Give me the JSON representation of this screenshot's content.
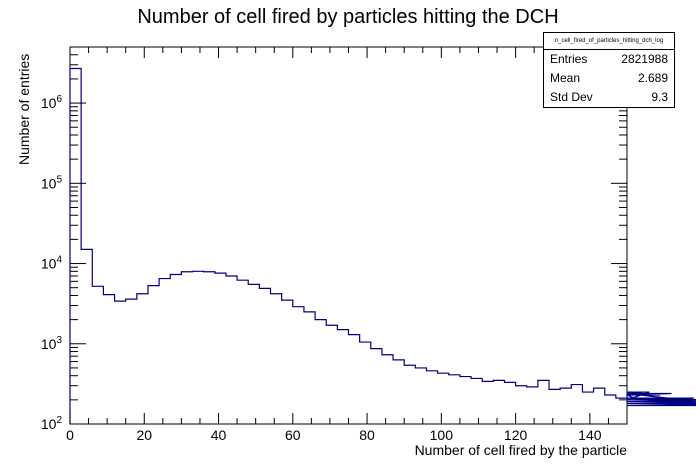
{
  "chart_data": {
    "type": "histogram",
    "title": "Number of cell fired by particles hitting the DCH",
    "xlabel": "Number of cell fired by the particle",
    "ylabel": "Number of entries",
    "xlim": [
      0,
      150
    ],
    "ylim": [
      100,
      5000000
    ],
    "y_scale": "log",
    "grid": false,
    "line_color": "#000080",
    "x_ticks": [
      0,
      20,
      40,
      60,
      80,
      100,
      120,
      140
    ],
    "y_ticks": [
      {
        "value": 100,
        "base": "10",
        "exp": "2"
      },
      {
        "value": 1000,
        "base": "10",
        "exp": "3"
      },
      {
        "value": 10000,
        "base": "10",
        "exp": "4"
      },
      {
        "value": 100000,
        "base": "10",
        "exp": "5"
      },
      {
        "value": 1000000,
        "base": "10",
        "exp": "6"
      }
    ],
    "bin_width": 3,
    "bin_edges_start": 0,
    "values": [
      2700000,
      15000,
      5200,
      4100,
      3400,
      3600,
      4200,
      5300,
      6500,
      7300,
      7900,
      8000,
      7900,
      7600,
      7000,
      6200,
      5500,
      4900,
      4200,
      3500,
      2900,
      2500,
      2000,
      1700,
      1500,
      1300,
      1050,
      870,
      730,
      630,
      540,
      500,
      460,
      430,
      410,
      390,
      370,
      340,
      350,
      330,
      300,
      290,
      350,
      270,
      280,
      310,
      250,
      280,
      230,
      210,
      230,
      200,
      250,
      230,
      240,
      200,
      210,
      200,
      190,
      180,
      170,
      170,
      170,
      170,
      170,
      170,
      170
    ],
    "stats_box": {
      "name": "n_cell_fired_of_particles_hitting_dch_log",
      "rows": [
        {
          "label": "Entries",
          "value": "2821988"
        },
        {
          "label": "Mean",
          "value": "2.689"
        },
        {
          "label": "Std Dev",
          "value": "9.3"
        }
      ]
    }
  }
}
